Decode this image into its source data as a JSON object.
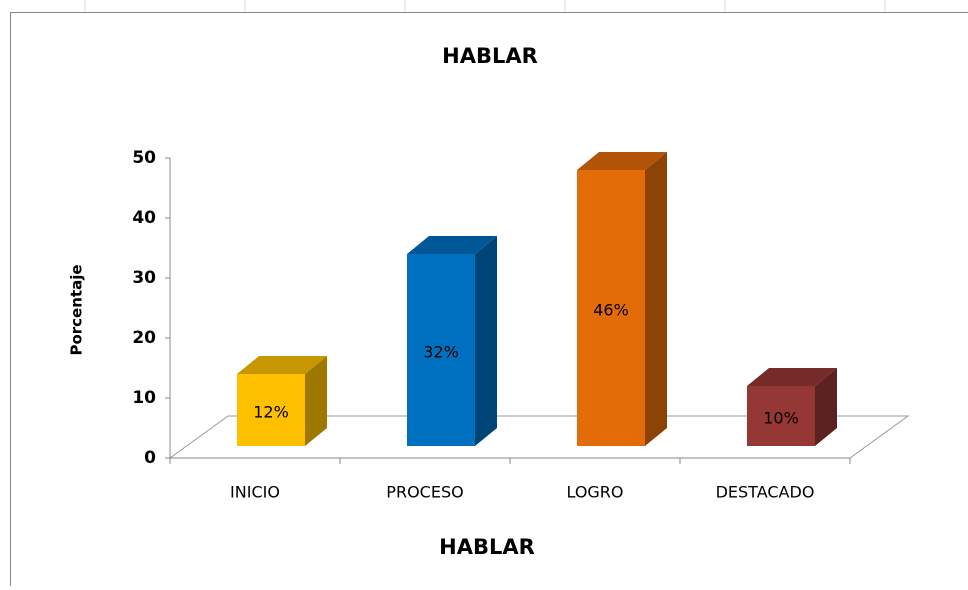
{
  "chart_data": {
    "type": "bar",
    "title": "HABLAR",
    "x_label": "HABLAR",
    "y_label": "Porcentaje",
    "categories": [
      "INICIO",
      "PROCESO",
      "LOGRO",
      "DESTACADO"
    ],
    "values": [
      12,
      32,
      46,
      10
    ],
    "value_labels": [
      "12%",
      "32%",
      "46%",
      "10%"
    ],
    "colors": [
      "#ffc000",
      "#0070c0",
      "#e36c09",
      "#953735"
    ],
    "ylim": [
      0,
      50
    ],
    "yticks": [
      0,
      10,
      20,
      30,
      40,
      50
    ],
    "grid": false
  }
}
